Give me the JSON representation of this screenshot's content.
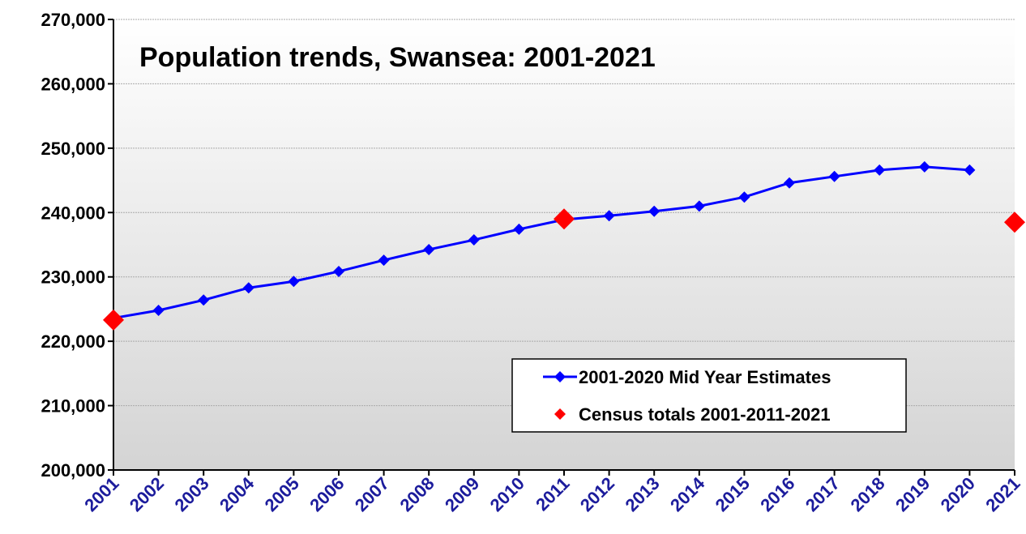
{
  "chart_data": {
    "type": "line",
    "title": "Population trends, Swansea: 2001-2021",
    "categories": [
      "2001",
      "2002",
      "2003",
      "2004",
      "2005",
      "2006",
      "2007",
      "2008",
      "2009",
      "2010",
      "2011",
      "2012",
      "2013",
      "2014",
      "2015",
      "2016",
      "2017",
      "2018",
      "2019",
      "2020",
      "2021"
    ],
    "series": [
      {
        "name": "2001-2020 Mid Year Estimates",
        "color": "#0000ff",
        "line": true,
        "values": [
          223600,
          224800,
          226400,
          228300,
          229300,
          230850,
          232600,
          234250,
          235750,
          237400,
          238900,
          239500,
          240200,
          241000,
          242400,
          244600,
          245600,
          246600,
          247100,
          246600,
          null
        ]
      },
      {
        "name": "Census totals 2001-2011-2021",
        "color": "#ff0000",
        "line": false,
        "values": [
          223300,
          null,
          null,
          null,
          null,
          null,
          null,
          null,
          null,
          null,
          239000,
          null,
          null,
          null,
          null,
          null,
          null,
          null,
          null,
          null,
          238500
        ]
      }
    ],
    "ylim": [
      200000,
      270000
    ],
    "yticks": [
      {
        "value": 200000,
        "label": "200,000"
      },
      {
        "value": 210000,
        "label": "210,000"
      },
      {
        "value": 220000,
        "label": "220,000"
      },
      {
        "value": 230000,
        "label": "230,000"
      },
      {
        "value": 240000,
        "label": "240,000"
      },
      {
        "value": 250000,
        "label": "250,000"
      },
      {
        "value": 260000,
        "label": "260,000"
      },
      {
        "value": 270000,
        "label": "270,000"
      }
    ],
    "grid": true,
    "legend": "lower right"
  }
}
